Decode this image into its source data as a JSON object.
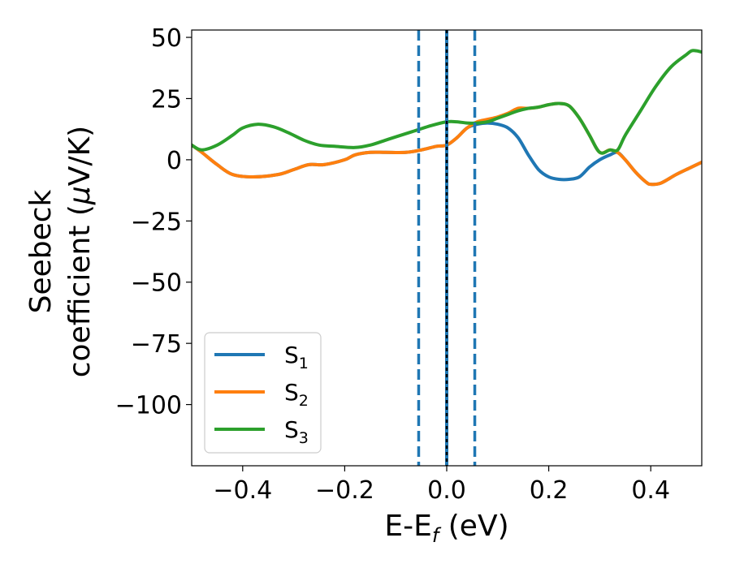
{
  "chart_data": {
    "type": "line",
    "xlabel": {
      "main": "E-E",
      "sub": "f",
      "tail": " (eV)"
    },
    "ylabel": {
      "line1": "Seebeck",
      "line2_pre": "coefficient  (",
      "line2_mu": "μ",
      "line2_post": "V/K)"
    },
    "xlim": [
      -0.5,
      0.5
    ],
    "ylim": [
      -125,
      53
    ],
    "xticks": [
      -0.4,
      -0.2,
      0.0,
      0.2,
      0.4
    ],
    "xtick_labels": [
      "−0.4",
      "−0.2",
      "0.0",
      "0.2",
      "0.4"
    ],
    "yticks": [
      50,
      25,
      0,
      -25,
      -50,
      -75,
      -100
    ],
    "ytick_labels": [
      "50",
      "25",
      "0",
      "−25",
      "−50",
      "−75",
      "−100"
    ],
    "vlines": [
      {
        "x": -0.055,
        "style": "dashed",
        "color": "#1f77b4"
      },
      {
        "x": 0.0,
        "style": "solid",
        "color": "#1f77b4"
      },
      {
        "x": 0.0,
        "style": "dotted",
        "color": "#000000"
      },
      {
        "x": 0.055,
        "style": "dashed",
        "color": "#1f77b4"
      }
    ],
    "legend_position": "lower-left",
    "series": [
      {
        "name": "S",
        "sub": "1",
        "color": "#1f77b4",
        "x": [
          -0.5,
          -0.48,
          -0.45,
          -0.42,
          -0.38,
          -0.33,
          -0.3,
          -0.27,
          -0.24,
          -0.2,
          -0.18,
          -0.15,
          -0.12,
          -0.08,
          -0.05,
          -0.02,
          0.0,
          0.02,
          0.04,
          0.06,
          0.08,
          0.1,
          0.12,
          0.14,
          0.16,
          0.18,
          0.2,
          0.22,
          0.24,
          0.26,
          0.28,
          0.3,
          0.32,
          0.335,
          0.35,
          0.37,
          0.39,
          0.4,
          0.42,
          0.45,
          0.48,
          0.5
        ],
        "y": [
          6,
          3,
          -2,
          -6,
          -7,
          -6,
          -4,
          -2,
          -2,
          0,
          2,
          3,
          3,
          3,
          4,
          5.5,
          6,
          9,
          13,
          14.5,
          15,
          14.5,
          13,
          9,
          2,
          -4,
          -7,
          -8,
          -8,
          -7,
          -3,
          0,
          2,
          3,
          0,
          -5,
          -9,
          -10,
          -9.5,
          -6,
          -3,
          -1
        ]
      },
      {
        "name": "S",
        "sub": "2",
        "color": "#ff7f0e",
        "x": [
          -0.5,
          -0.48,
          -0.45,
          -0.42,
          -0.38,
          -0.33,
          -0.3,
          -0.27,
          -0.24,
          -0.2,
          -0.18,
          -0.15,
          -0.12,
          -0.08,
          -0.05,
          -0.02,
          0.0,
          0.02,
          0.04,
          0.06,
          0.08,
          0.1,
          0.12,
          0.14,
          0.16,
          0.18,
          0.2,
          0.22,
          0.24,
          0.26,
          0.28,
          0.3,
          0.32,
          0.335,
          0.35,
          0.37,
          0.39,
          0.4,
          0.42,
          0.45,
          0.48,
          0.5
        ],
        "y": [
          6,
          3,
          -2,
          -6,
          -7,
          -6,
          -4,
          -2,
          -2,
          0,
          2,
          3,
          3,
          3,
          4,
          5.5,
          6,
          9,
          13,
          15.5,
          16.5,
          17.5,
          19,
          21,
          21,
          21.5,
          22.5,
          23,
          22,
          17,
          10,
          3,
          4,
          3,
          0,
          -5,
          -9,
          -10,
          -9.5,
          -6,
          -3,
          -1
        ]
      },
      {
        "name": "S",
        "sub": "3",
        "color": "#2ca02c",
        "x": [
          -0.5,
          -0.48,
          -0.45,
          -0.42,
          -0.4,
          -0.37,
          -0.34,
          -0.31,
          -0.28,
          -0.25,
          -0.22,
          -0.18,
          -0.15,
          -0.12,
          -0.09,
          -0.06,
          -0.03,
          0.0,
          0.02,
          0.04,
          0.06,
          0.08,
          0.1,
          0.12,
          0.14,
          0.16,
          0.18,
          0.2,
          0.22,
          0.24,
          0.26,
          0.28,
          0.3,
          0.32,
          0.335,
          0.35,
          0.38,
          0.41,
          0.44,
          0.47,
          0.48,
          0.49,
          0.5
        ],
        "y": [
          6,
          4,
          6,
          10,
          13,
          14.5,
          13.5,
          11,
          8,
          6,
          5.5,
          5,
          6,
          8,
          10,
          12,
          14,
          15.5,
          15.5,
          15,
          15,
          15.5,
          17,
          18.5,
          20,
          21,
          21.5,
          22.5,
          23,
          22,
          17,
          10,
          3,
          4,
          4,
          10,
          20,
          30,
          38,
          43,
          44.5,
          44.5,
          44
        ]
      }
    ]
  }
}
